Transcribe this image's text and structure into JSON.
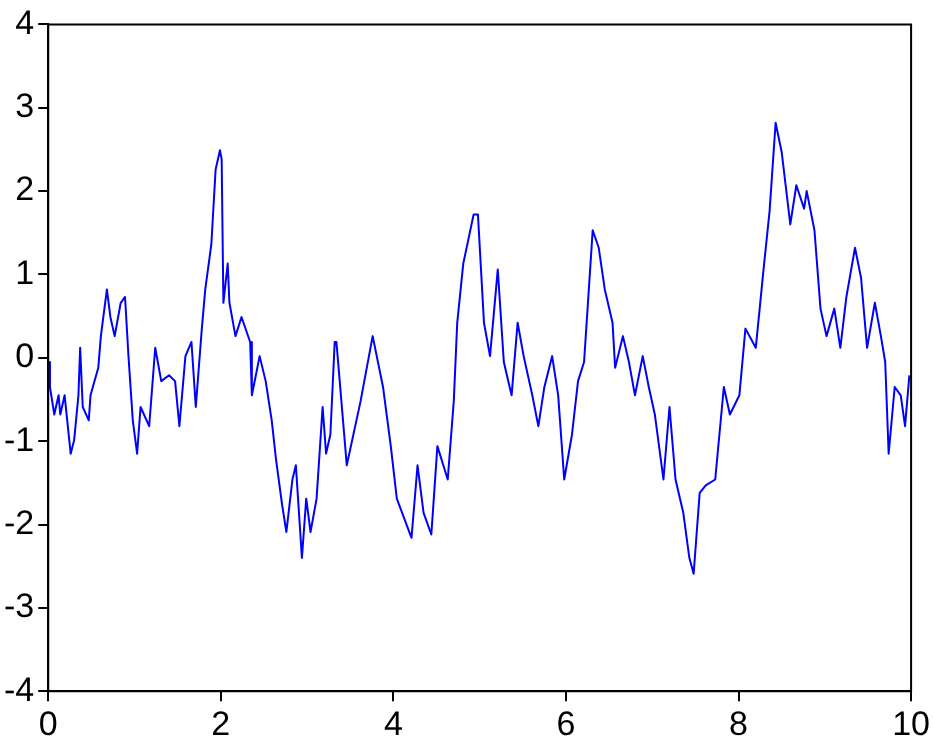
{
  "chart_data": {
    "type": "line",
    "xlim": [
      0,
      10
    ],
    "ylim": [
      -4,
      4
    ],
    "xticks": [
      0,
      2,
      4,
      6,
      8,
      10
    ],
    "yticks": [
      -4,
      -3,
      -2,
      -1,
      0,
      1,
      2,
      3,
      4
    ],
    "grid": false,
    "legend": false,
    "marker": "none",
    "line_style": "solid",
    "series": [
      {
        "color": "#0000ff",
        "x": [
          0,
          0.02,
          0.07,
          0.12,
          0.14,
          0.19,
          0.26,
          0.3,
          0.35,
          0.37,
          0.4,
          0.47,
          0.49,
          0.58,
          0.61,
          0.68,
          0.72,
          0.77,
          0.84,
          0.89,
          0.93,
          0.98,
          1.03,
          1.07,
          1.17,
          1.24,
          1.31,
          1.4,
          1.47,
          1.52,
          1.59,
          1.66,
          1.71,
          1.78,
          1.82,
          1.89,
          1.94,
          1.99,
          2.01,
          2.03,
          2.08,
          2.1,
          2.17,
          2.24,
          2.34,
          2.36,
          2.45,
          2.52,
          2.59,
          2.64,
          2.71,
          2.76,
          2.83,
          2.87,
          2.94,
          2.99,
          3.04,
          3.11,
          3.18,
          3.22,
          3.27,
          3.32,
          3.34,
          3.46,
          3.62,
          3.76,
          3.88,
          3.97,
          4.04,
          4.21,
          4.28,
          4.35,
          4.44,
          4.51,
          4.63,
          4.7,
          4.74,
          4.81,
          4.93,
          4.98,
          5.05,
          5.12,
          5.21,
          5.28,
          5.37,
          5.44,
          5.51,
          5.61,
          5.68,
          5.75,
          5.84,
          5.91,
          5.98,
          6.07,
          6.14,
          6.21,
          6.31,
          6.38,
          6.45,
          6.54,
          6.57,
          6.66,
          6.73,
          6.8,
          6.89,
          6.96,
          7.03,
          7.13,
          7.2,
          7.27,
          7.36,
          7.43,
          7.48,
          7.55,
          7.62,
          7.73,
          7.83,
          7.9,
          8.01,
          8.08,
          8.2,
          8.29,
          8.36,
          8.43,
          8.5,
          8.6,
          8.67,
          8.76,
          8.79,
          8.88,
          8.95,
          9.02,
          9.11,
          9.18,
          9.25,
          9.35,
          9.42,
          9.49,
          9.58,
          9.65,
          9.7,
          9.74,
          9.81,
          9.88,
          9.93,
          9.98
        ],
        "values": [
          -0.05,
          -0.35,
          -0.68,
          -0.45,
          -0.68,
          -0.45,
          -1.15,
          -0.99,
          -0.45,
          0.12,
          -0.59,
          -0.75,
          -0.45,
          -0.12,
          0.26,
          0.82,
          0.49,
          0.26,
          0.66,
          0.73,
          0.02,
          -0.75,
          -1.15,
          -0.59,
          -0.82,
          0.12,
          -0.28,
          -0.21,
          -0.28,
          -0.82,
          0.02,
          0.19,
          -0.59,
          0.35,
          0.82,
          1.36,
          2.26,
          2.49,
          2.38,
          0.66,
          1.13,
          0.66,
          0.26,
          0.49,
          0.19,
          -0.45,
          0.02,
          -0.28,
          -0.75,
          -1.22,
          -1.76,
          -2.09,
          -1.46,
          -1.29,
          -2.4,
          -1.69,
          -2.09,
          -1.69,
          -0.59,
          -1.15,
          -0.92,
          0.19,
          0.19,
          -1.29,
          -0.52,
          0.26,
          -0.35,
          -1.06,
          -1.69,
          -2.16,
          -1.29,
          -1.86,
          -2.12,
          -1.06,
          -1.46,
          -0.52,
          0.42,
          1.13,
          1.72,
          1.72,
          0.42,
          0.02,
          1.06,
          -0.05,
          -0.45,
          0.42,
          0.02,
          -0.45,
          -0.82,
          -0.35,
          0.02,
          -0.45,
          -1.46,
          -0.92,
          -0.28,
          -0.05,
          1.53,
          1.32,
          0.82,
          0.42,
          -0.12,
          0.26,
          -0.05,
          -0.45,
          0.02,
          -0.35,
          -0.68,
          -1.46,
          -0.59,
          -1.46,
          -1.86,
          -2.4,
          -2.59,
          -1.62,
          -1.53,
          -1.46,
          -0.35,
          -0.68,
          -0.45,
          0.35,
          0.12,
          1.06,
          1.76,
          2.82,
          2.47,
          1.6,
          2.07,
          1.79,
          2,
          1.53,
          0.59,
          0.26,
          0.59,
          0.12,
          0.73,
          1.32,
          0.96,
          0.12,
          0.66,
          0.26,
          -0.05,
          -1.15,
          -0.35,
          -0.45,
          -0.82,
          -0.21
        ]
      }
    ]
  }
}
